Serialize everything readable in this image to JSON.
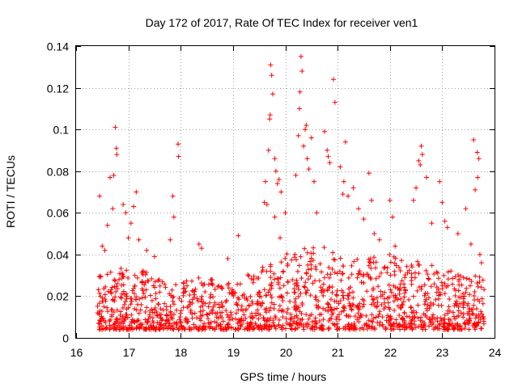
{
  "chart_data": {
    "type": "scatter",
    "title": "Day 172 of 2017, Rate Of TEC Index for receiver ven1",
    "xlabel": "GPS time / hours",
    "ylabel": "ROTI / TECUs",
    "xlim": [
      16,
      24
    ],
    "ylim": [
      0,
      0.14
    ],
    "xticks": [
      "16",
      "17",
      "18",
      "19",
      "20",
      "21",
      "22",
      "23",
      "24"
    ],
    "yticks": [
      "0",
      "0.02",
      "0.04",
      "0.06",
      "0.08",
      "0.1",
      "0.12",
      "0.14"
    ],
    "grid": true,
    "marker": "+",
    "color": "#ff0000",
    "series": [
      {
        "name": "ROTI",
        "points": [
          [
            16.45,
            0.068
          ],
          [
            16.5,
            0.044
          ],
          [
            16.55,
            0.042
          ],
          [
            16.6,
            0.054
          ],
          [
            16.65,
            0.077
          ],
          [
            16.7,
            0.062
          ],
          [
            16.72,
            0.078
          ],
          [
            16.75,
            0.101
          ],
          [
            16.77,
            0.091
          ],
          [
            16.78,
            0.088
          ],
          [
            16.9,
            0.064
          ],
          [
            16.95,
            0.06
          ],
          [
            17.0,
            0.048
          ],
          [
            17.05,
            0.055
          ],
          [
            17.1,
            0.063
          ],
          [
            17.15,
            0.07
          ],
          [
            17.2,
            0.047
          ],
          [
            17.35,
            0.042
          ],
          [
            17.5,
            0.039
          ],
          [
            17.85,
            0.068
          ],
          [
            17.87,
            0.058
          ],
          [
            17.8,
            0.047
          ],
          [
            17.95,
            0.093
          ],
          [
            17.96,
            0.087
          ],
          [
            18.35,
            0.045
          ],
          [
            18.4,
            0.043
          ],
          [
            18.9,
            0.038
          ],
          [
            19.1,
            0.049
          ],
          [
            19.6,
            0.065
          ],
          [
            19.62,
            0.075
          ],
          [
            19.65,
            0.064
          ],
          [
            19.68,
            0.09
          ],
          [
            19.7,
            0.105
          ],
          [
            19.71,
            0.107
          ],
          [
            19.72,
            0.131
          ],
          [
            19.74,
            0.126
          ],
          [
            19.76,
            0.117
          ],
          [
            19.8,
            0.086
          ],
          [
            19.82,
            0.08
          ],
          [
            19.85,
            0.074
          ],
          [
            19.88,
            0.076
          ],
          [
            19.92,
            0.07
          ],
          [
            19.8,
            0.058
          ],
          [
            19.9,
            0.048
          ],
          [
            20.0,
            0.06
          ],
          [
            20.2,
            0.078
          ],
          [
            20.25,
            0.097
          ],
          [
            20.27,
            0.11
          ],
          [
            20.28,
            0.118
          ],
          [
            20.3,
            0.135
          ],
          [
            20.32,
            0.128
          ],
          [
            20.35,
            0.092
          ],
          [
            20.38,
            0.1
          ],
          [
            20.4,
            0.102
          ],
          [
            20.42,
            0.086
          ],
          [
            20.45,
            0.081
          ],
          [
            20.5,
            0.096
          ],
          [
            20.55,
            0.075
          ],
          [
            20.6,
            0.06
          ],
          [
            20.75,
            0.099
          ],
          [
            20.8,
            0.09
          ],
          [
            20.82,
            0.087
          ],
          [
            20.85,
            0.084
          ],
          [
            20.92,
            0.124
          ],
          [
            20.95,
            0.113
          ],
          [
            21.05,
            0.082
          ],
          [
            21.1,
            0.069
          ],
          [
            21.12,
            0.075
          ],
          [
            21.15,
            0.094
          ],
          [
            21.2,
            0.068
          ],
          [
            21.3,
            0.072
          ],
          [
            21.4,
            0.062
          ],
          [
            21.5,
            0.057
          ],
          [
            21.6,
            0.079
          ],
          [
            21.65,
            0.066
          ],
          [
            21.7,
            0.05
          ],
          [
            21.8,
            0.047
          ],
          [
            22.0,
            0.066
          ],
          [
            22.05,
            0.058
          ],
          [
            22.1,
            0.044
          ],
          [
            22.45,
            0.066
          ],
          [
            22.5,
            0.072
          ],
          [
            22.55,
            0.085
          ],
          [
            22.58,
            0.083
          ],
          [
            22.6,
            0.092
          ],
          [
            22.62,
            0.088
          ],
          [
            22.7,
            0.077
          ],
          [
            22.8,
            0.055
          ],
          [
            22.95,
            0.075
          ],
          [
            23.0,
            0.065
          ],
          [
            23.05,
            0.056
          ],
          [
            23.1,
            0.053
          ],
          [
            23.3,
            0.05
          ],
          [
            23.45,
            0.062
          ],
          [
            23.55,
            0.045
          ],
          [
            23.6,
            0.095
          ],
          [
            23.63,
            0.071
          ],
          [
            23.67,
            0.089
          ],
          [
            23.68,
            0.077
          ],
          [
            23.7,
            0.086
          ],
          [
            23.72,
            0.04
          ],
          [
            23.75,
            0.036
          ]
        ],
        "dense_band": {
          "x_range": [
            16.4,
            23.8
          ],
          "y_lower": 0.004,
          "y_upper_by_hour": [
            [
              16.4,
              0.03
            ],
            [
              17.0,
              0.035
            ],
            [
              17.5,
              0.03
            ],
            [
              18.0,
              0.028
            ],
            [
              18.5,
              0.03
            ],
            [
              19.0,
              0.027
            ],
            [
              19.5,
              0.033
            ],
            [
              20.0,
              0.04
            ],
            [
              20.5,
              0.045
            ],
            [
              21.0,
              0.042
            ],
            [
              21.5,
              0.04
            ],
            [
              22.0,
              0.04
            ],
            [
              22.5,
              0.038
            ],
            [
              23.0,
              0.034
            ],
            [
              23.5,
              0.03
            ],
            [
              23.8,
              0.03
            ]
          ],
          "count": 1500
        }
      }
    ]
  }
}
